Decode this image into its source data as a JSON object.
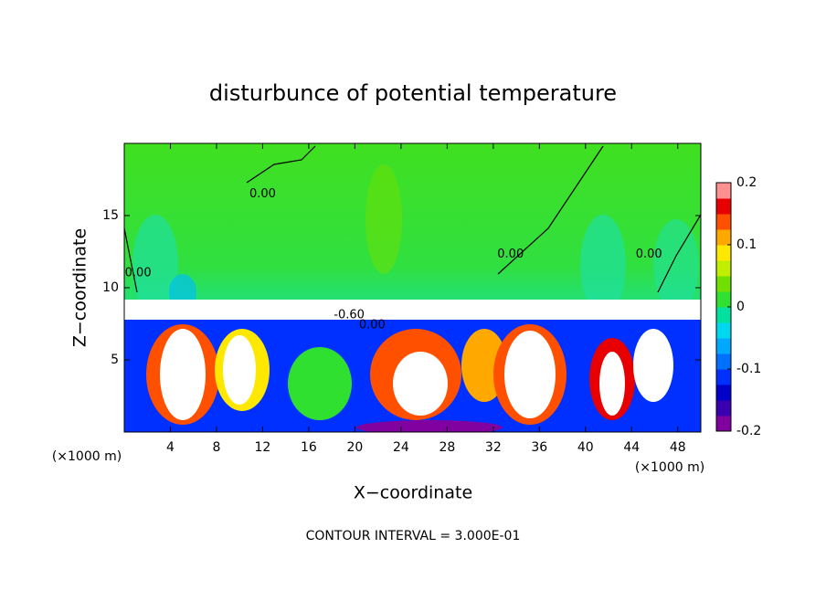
{
  "chart_data": {
    "type": "heatmap",
    "title": "disturbunce of potential temperature",
    "x_label": "X−coordinate",
    "y_label": "Z−coordinate",
    "x_unit_label": "(×1000 m)",
    "y_unit_label": "(×1000 m)",
    "footer": "CONTOUR INTERVAL = 3.000E-01",
    "xlim": [
      0,
      50
    ],
    "ylim": [
      0,
      20
    ],
    "xticks": [
      4,
      8,
      12,
      16,
      20,
      24,
      28,
      32,
      36,
      40,
      44,
      48
    ],
    "yticks": [
      5,
      10,
      15
    ],
    "colorbar": {
      "zlim": [
        -0.2,
        0.2
      ],
      "ticks": [
        0.2,
        0.1,
        0,
        -0.1,
        -0.2
      ],
      "colors": [
        "#8000a0",
        "#3a00b0",
        "#0000c8",
        "#0030ff",
        "#0070ff",
        "#00a8ff",
        "#00d8f0",
        "#00e0a0",
        "#30e030",
        "#70e000",
        "#c0f000",
        "#ffe800",
        "#ffa800",
        "#ff5000",
        "#e80000",
        "#ff9090"
      ]
    },
    "annotations": [
      {
        "text": "0.00",
        "x": 12,
        "y": 16.5
      },
      {
        "text": "0.00",
        "x": 1.2,
        "y": 11
      },
      {
        "text": "0.00",
        "x": 33.5,
        "y": 12.3
      },
      {
        "text": "0.00",
        "x": 45.5,
        "y": 12.3
      },
      {
        "text": "-0.60",
        "x": 19.5,
        "y": 8.1
      },
      {
        "text": "0.00",
        "x": 21.5,
        "y": 7.4
      }
    ]
  }
}
